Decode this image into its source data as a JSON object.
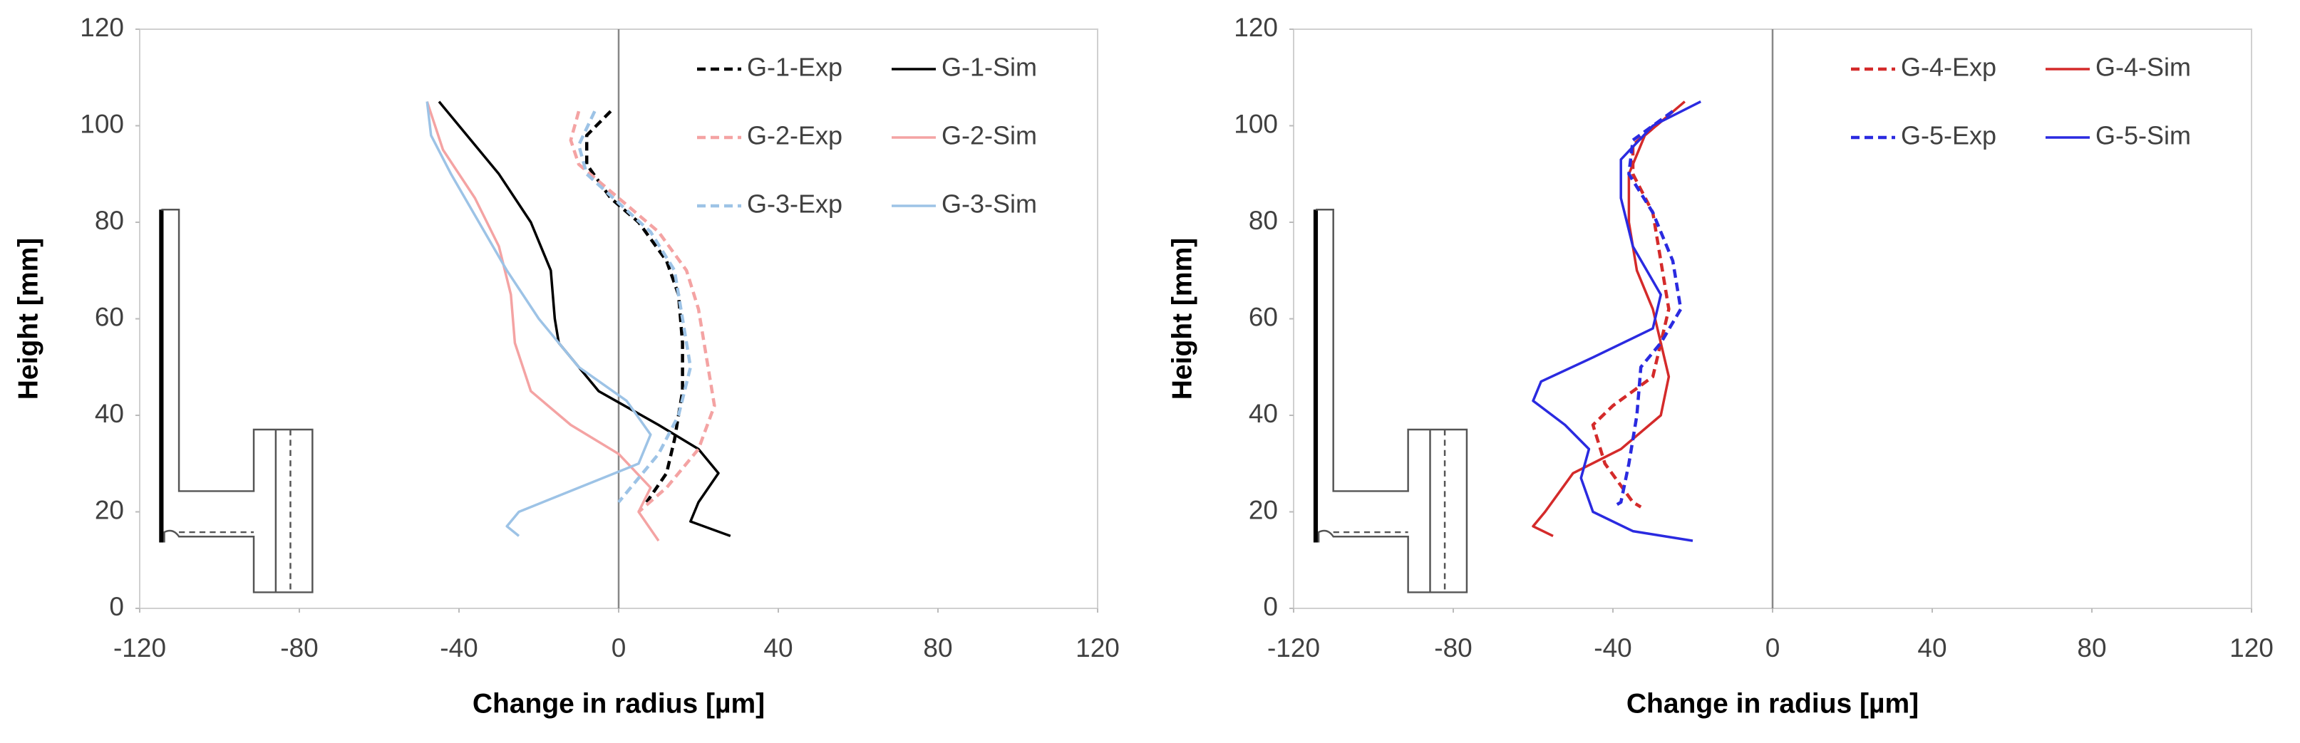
{
  "chart_data": [
    {
      "type": "line",
      "xlabel": "Change in radius [µm]",
      "ylabel": "Height [mm]",
      "xlim": [
        -120,
        120
      ],
      "xticks": [
        -120,
        -80,
        -40,
        0,
        40,
        80,
        120
      ],
      "ylim": [
        0,
        120
      ],
      "yticks": [
        0,
        20,
        40,
        60,
        80,
        100,
        120
      ],
      "legend": "upper right",
      "series": [
        {
          "name": "G-1-Exp",
          "color": "#000000",
          "dashed": true,
          "x": [
            -2,
            -8,
            -8,
            -2,
            5,
            12,
            15,
            16,
            16,
            14,
            12,
            7
          ],
          "values": [
            103,
            98,
            92,
            85,
            80,
            72,
            65,
            55,
            45,
            35,
            28,
            22
          ]
        },
        {
          "name": "G-1-Sim",
          "color": "#000000",
          "dashed": false,
          "x": [
            -45,
            -40,
            -30,
            -22,
            -17,
            -16,
            -15,
            -5,
            10,
            20,
            25,
            20,
            18,
            28
          ],
          "values": [
            105,
            100,
            90,
            80,
            70,
            60,
            55,
            45,
            38,
            33,
            28,
            22,
            18,
            15
          ]
        },
        {
          "name": "G-2-Exp",
          "color": "#f4a3a3",
          "dashed": true,
          "x": [
            -10,
            -12,
            -10,
            0,
            10,
            17,
            20,
            22,
            24,
            20,
            12,
            5
          ],
          "values": [
            103,
            97,
            92,
            85,
            78,
            70,
            62,
            52,
            42,
            33,
            25,
            20
          ]
        },
        {
          "name": "G-2-Sim",
          "color": "#f4a3a3",
          "dashed": false,
          "x": [
            -48,
            -44,
            -36,
            -30,
            -27,
            -26,
            -22,
            -12,
            0,
            8,
            5,
            10
          ],
          "values": [
            105,
            95,
            85,
            75,
            65,
            55,
            45,
            38,
            32,
            25,
            20,
            14
          ]
        },
        {
          "name": "G-3-Exp",
          "color": "#9dc3e6",
          "dashed": true,
          "x": [
            -6,
            -10,
            -8,
            0,
            8,
            14,
            16,
            18,
            15,
            10,
            3,
            0
          ],
          "values": [
            103,
            96,
            90,
            84,
            78,
            70,
            60,
            50,
            40,
            32,
            25,
            22
          ]
        },
        {
          "name": "G-3-Sim",
          "color": "#9dc3e6",
          "dashed": false,
          "x": [
            -48,
            -47,
            -42,
            -35,
            -28,
            -20,
            -10,
            2,
            8,
            5,
            -10,
            -25,
            -28,
            -25
          ],
          "values": [
            105,
            98,
            90,
            80,
            70,
            60,
            50,
            43,
            36,
            30,
            25,
            20,
            17,
            15
          ]
        }
      ]
    },
    {
      "type": "line",
      "xlabel": "Change in radius [µm]",
      "ylabel": "Height [mm]",
      "xlim": [
        -120,
        120
      ],
      "xticks": [
        -120,
        -80,
        -40,
        0,
        40,
        80,
        120
      ],
      "ylim": [
        0,
        120
      ],
      "yticks": [
        0,
        20,
        40,
        60,
        80,
        100,
        120
      ],
      "legend": "upper right",
      "series": [
        {
          "name": "G-4-Exp",
          "color": "#d42a2a",
          "dashed": true,
          "x": [
            -25,
            -35,
            -35,
            -30,
            -28,
            -26,
            -28,
            -30,
            -40,
            -45,
            -42,
            -35,
            -33
          ],
          "values": [
            103,
            96,
            90,
            82,
            72,
            62,
            55,
            48,
            42,
            38,
            30,
            22,
            21
          ]
        },
        {
          "name": "G-4-Sim",
          "color": "#d42a2a",
          "dashed": false,
          "x": [
            -22,
            -32,
            -36,
            -36,
            -34,
            -30,
            -28,
            -26,
            -28,
            -38,
            -50,
            -57,
            -60,
            -55
          ],
          "values": [
            105,
            98,
            90,
            80,
            70,
            62,
            55,
            48,
            40,
            33,
            28,
            20,
            17,
            15
          ]
        },
        {
          "name": "G-5-Exp",
          "color": "#2a2ae0",
          "dashed": true,
          "x": [
            -25,
            -35,
            -36,
            -30,
            -25,
            -23,
            -28,
            -33,
            -34,
            -36,
            -38,
            -40
          ],
          "values": [
            103,
            97,
            90,
            82,
            72,
            62,
            55,
            50,
            40,
            30,
            22,
            21
          ]
        },
        {
          "name": "G-5-Sim",
          "color": "#2a2ae0",
          "dashed": false,
          "x": [
            -18,
            -30,
            -38,
            -38,
            -35,
            -28,
            -30,
            -45,
            -58,
            -60,
            -52,
            -46,
            -48,
            -45,
            -35,
            -20
          ],
          "values": [
            105,
            100,
            93,
            85,
            75,
            65,
            58,
            52,
            47,
            43,
            38,
            33,
            27,
            20,
            16,
            14
          ]
        }
      ]
    }
  ]
}
